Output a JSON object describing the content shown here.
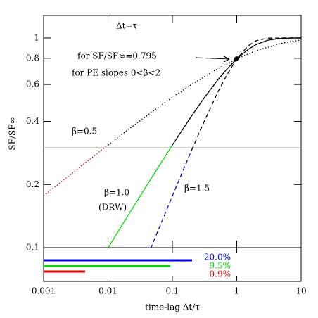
{
  "chart_data": {
    "type": "line",
    "xlabel": "time-lag Δt/τ",
    "ylabel": "SF/SF∞",
    "log_x": true,
    "log_y": true,
    "xlim": [
      0.001,
      10
    ],
    "ylim": [
      0.1,
      1.28
    ],
    "xticks": [
      0.001,
      0.01,
      0.1,
      1,
      10
    ],
    "yticks": [
      0.1,
      0.2,
      0.4,
      0.6,
      0.8,
      1
    ],
    "hline": {
      "value": 0.3,
      "color": "#bbbbbb"
    },
    "curves": [
      {
        "label": "β=0.5",
        "segments": [
          {
            "color": "#dd0000",
            "style": "dotted",
            "x": [
              0.001,
              0.002,
              0.005,
              0.01
            ],
            "values": [
              0.1764,
              0.2091,
              0.2613,
              0.3085
            ]
          },
          {
            "color": "#000000",
            "style": "dotted",
            "x": [
              0.01,
              0.02,
              0.05,
              0.1,
              0.2,
              0.5,
              1,
              2,
              5,
              10
            ],
            "values": [
              0.3085,
              0.3632,
              0.4476,
              0.5207,
              0.6005,
              0.712,
              0.7951,
              0.87,
              0.945,
              0.9786
            ]
          }
        ]
      },
      {
        "label": "β=1.0",
        "note": "(DRW)",
        "segments": [
          {
            "color": "#00dd00",
            "style": "solid",
            "x": [
              0.01,
              0.02,
              0.05,
              0.1
            ],
            "values": [
              0.09975,
              0.1407,
              0.2208,
              0.3085
            ]
          },
          {
            "color": "#000000",
            "style": "solid",
            "x": [
              0.1,
              0.2,
              0.3,
              0.5,
              0.7,
              1,
              1.5,
              2,
              3,
              5,
              10
            ],
            "values": [
              0.3085,
              0.4258,
              0.5091,
              0.6273,
              0.7095,
              0.7951,
              0.8814,
              0.9299,
              0.9748,
              0.9966,
              1.0
            ]
          }
        ]
      },
      {
        "label": "β=1.5",
        "segments": [
          {
            "color": "#0000dd",
            "style": "dashed",
            "x": [
              0.046,
              0.1,
              0.2
            ],
            "values": [
              0.0991,
              0.1764,
              0.2925
            ]
          },
          {
            "color": "#000000",
            "style": "dashed",
            "x": [
              0.2,
              0.3,
              0.5,
              0.7,
              1,
              1.5,
              2,
              3,
              5,
              10
            ],
            "values": [
              0.2925,
              0.3892,
              0.5457,
              0.6658,
              0.7951,
              0.9169,
              0.97,
              0.9972,
              1.0,
              1.0
            ]
          }
        ]
      }
    ],
    "point": {
      "x": 1,
      "y": 0.795
    },
    "annotation": [
      "Δt=τ",
      "for SF/SF∞=0.795",
      "for PE slopes 0<β<2"
    ],
    "bars": [
      {
        "color": "#0000dd",
        "end": 0.202,
        "label": "20.0%"
      },
      {
        "color": "#00dd00",
        "end": 0.093,
        "label": "9.5%"
      },
      {
        "color": "#dd0000",
        "end": 0.0044,
        "label": "0.9%"
      }
    ]
  }
}
